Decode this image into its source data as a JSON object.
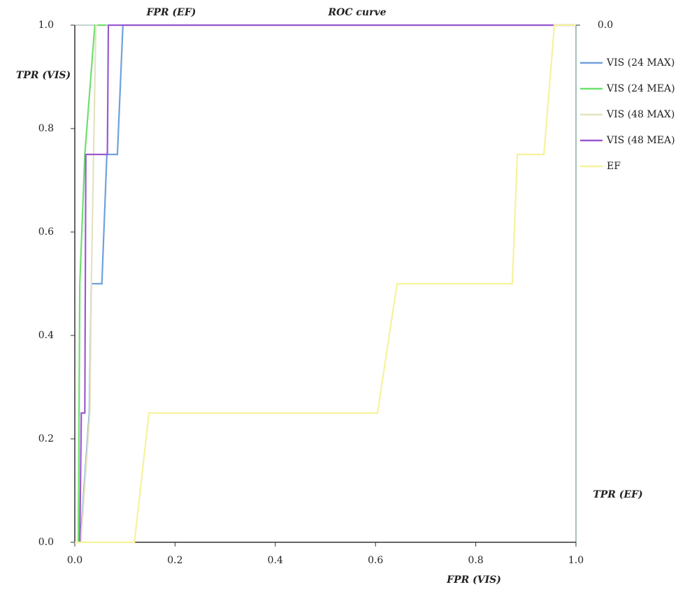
{
  "chart_data": {
    "type": "line",
    "title": "ROC curve",
    "xlabel": "FPR (VIS)",
    "ylabel": "TPR (VIS)",
    "x2label": "FPR (EF)",
    "y2label": "TPR (EF)",
    "xlim": [
      0,
      1
    ],
    "ylim": [
      0,
      1
    ],
    "y2lim": [
      1,
      0
    ],
    "xticks": [
      {
        "value": 0,
        "label": "0.0"
      },
      0.2,
      0.4,
      0.6,
      0.8,
      {
        "value": 1,
        "label": "1.0"
      }
    ],
    "yticks": [
      {
        "value": 0,
        "label": "0.0"
      },
      0.2,
      0.4,
      0.6,
      0.8,
      {
        "value": 1,
        "label": "1.0"
      }
    ],
    "y2ticks": [
      {
        "value": 0,
        "label": "0.0"
      }
    ],
    "series": [
      {
        "name": "VIS (24 MAX)",
        "color": "#6fa0dc",
        "x": [
          0.011,
          0.029,
          0.033,
          0.054,
          0.064,
          0.085,
          0.096,
          1
        ],
        "values": [
          0,
          0.25,
          0.5,
          0.5,
          0.75,
          0.75,
          1,
          1
        ]
      },
      {
        "name": "VIS (24 MEA)",
        "color": "#6de06d",
        "x": [
          0.007,
          0.01,
          0.02,
          0.04,
          0.063
        ],
        "values": [
          0,
          0.5,
          0.75,
          1,
          1
        ]
      },
      {
        "name": "VIS (48 MAX)",
        "color": "#e4e2c0",
        "x": [
          0.012,
          0.03,
          0.033,
          0.042,
          0.045
        ],
        "values": [
          0,
          0.25,
          0.5,
          1,
          1
        ]
      },
      {
        "name": "VIS (48 MEA)",
        "color": "#9b59d0",
        "x": [
          0.01,
          0.013,
          0.02,
          0.022,
          0.065,
          0.067,
          1
        ],
        "values": [
          0,
          0.25,
          0.25,
          0.75,
          0.75,
          1,
          1
        ]
      },
      {
        "name": "EF",
        "color": "#f5f29a",
        "x": [
          0,
          0.119,
          0.148,
          0.604,
          0.643,
          0.873,
          0.883,
          0.936,
          0.957,
          1
        ],
        "values": [
          0,
          0,
          0.25,
          0.25,
          0.5,
          0.5,
          0.75,
          0.75,
          1,
          1
        ]
      }
    ]
  }
}
